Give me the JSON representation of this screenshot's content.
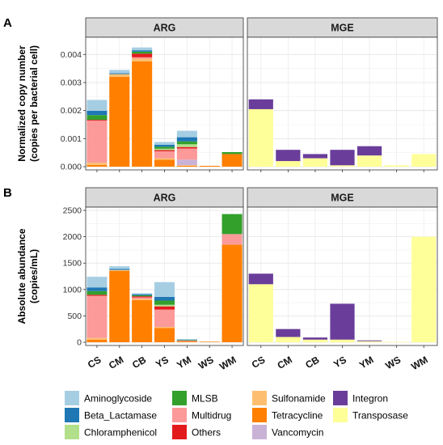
{
  "panels": {
    "A": {
      "letter": "A",
      "ylabel_line1": "Normalized copy number",
      "ylabel_line2": "(copies per bacterial cell)"
    },
    "B": {
      "letter": "B",
      "ylabel_line1": "Absolute abundance",
      "ylabel_line2": "(copies/mL)"
    }
  },
  "colors": {
    "Aminoglycoside": "#a6cee3",
    "Beta_Lactamase": "#1f78b4",
    "Chloramphenicol": "#b2df8a",
    "MLSB": "#33a02c",
    "Multidrug": "#fb9a99",
    "Others": "#e31a1c",
    "Sulfonamide": "#fdbf6f",
    "Tetracycline": "#ff7f00",
    "Vancomycin": "#cab2d6",
    "Integron": "#6a3d9a",
    "Transposase": "#ffff99"
  },
  "legend": [
    [
      "Aminoglycoside",
      "MLSB",
      "Sulfonamide",
      "Integron"
    ],
    [
      "Beta_Lactamase",
      "Multidrug",
      "Tetracycline",
      "Transposase"
    ],
    [
      "Chloramphenicol",
      "Others",
      "Vancomycin"
    ]
  ],
  "chart_data": [
    {
      "panel": "A",
      "facet": "ARG",
      "type": "bar",
      "stacked": true,
      "categories": [
        "CS",
        "CM",
        "CB",
        "YS",
        "YM",
        "WS",
        "WM"
      ],
      "ylim": [
        0,
        0.0045
      ],
      "yticks": [
        "0.000",
        "0.001",
        "0.002",
        "0.003",
        "0.004"
      ],
      "ytick_values": [
        0,
        0.001,
        0.002,
        0.003,
        0.004
      ],
      "series": [
        {
          "name": "Tetracycline",
          "values": [
            6e-05,
            0.0032,
            0.00375,
            0.00025,
            3e-05,
            3e-05,
            0.00045
          ]
        },
        {
          "name": "Sulfonamide",
          "values": [
            8e-05,
            0.0001,
            0.0001,
            5e-05,
            2e-05,
            0.0,
            0.0
          ]
        },
        {
          "name": "Vancomycin",
          "values": [
            0.0,
            0.0,
            0.0,
            0.0,
            0.0002,
            0.0,
            0.0
          ]
        },
        {
          "name": "Multidrug",
          "values": [
            0.0015,
            0.0,
            5e-05,
            0.00025,
            0.0004,
            0.0,
            0.0
          ]
        },
        {
          "name": "Others",
          "values": [
            3e-05,
            0.0,
            0.00013,
            4e-05,
            5e-05,
            0.0,
            0.0
          ]
        },
        {
          "name": "Chloramphenicol",
          "values": [
            0.0,
            0.0,
            0.0,
            5e-05,
            0.0001,
            0.0,
            0.0
          ]
        },
        {
          "name": "MLSB",
          "values": [
            0.00017,
            0.0,
            7e-05,
            7e-05,
            0.0001,
            0.0,
            7e-05
          ]
        },
        {
          "name": "Beta_Lactamase",
          "values": [
            0.00015,
            3e-05,
            5e-05,
            7e-05,
            0.00015,
            0.0,
            0.0
          ]
        },
        {
          "name": "Aminoglycoside",
          "values": [
            0.00039,
            0.00012,
            0.0001,
            0.0001,
            0.00023,
            0.0,
            0.0
          ]
        }
      ]
    },
    {
      "panel": "A",
      "facet": "MGE",
      "type": "bar",
      "stacked": true,
      "categories": [
        "CS",
        "CM",
        "CB",
        "YS",
        "YM",
        "WS",
        "WM"
      ],
      "ylim": [
        0,
        0.0045
      ],
      "series": [
        {
          "name": "Transposase",
          "values": [
            0.00205,
            0.0002,
            0.0003,
            5e-05,
            0.0004,
            5e-05,
            0.00045
          ]
        },
        {
          "name": "Integron",
          "values": [
            0.00035,
            0.0004,
            0.00015,
            0.00055,
            0.00033,
            0.0,
            0.0
          ]
        }
      ]
    },
    {
      "panel": "B",
      "facet": "ARG",
      "type": "bar",
      "stacked": true,
      "categories": [
        "CS",
        "CM",
        "CB",
        "YS",
        "YM",
        "WS",
        "WM"
      ],
      "ylim": [
        0,
        2500
      ],
      "yticks": [
        "0",
        "500",
        "1000",
        "1500",
        "2000",
        "2500"
      ],
      "ytick_values": [
        0,
        500,
        1000,
        1500,
        2000,
        2500
      ],
      "series": [
        {
          "name": "Tetracycline",
          "values": [
            50,
            1350,
            800,
            270,
            15,
            10,
            1850
          ]
        },
        {
          "name": "Sulfonamide",
          "values": [
            30,
            20,
            20,
            20,
            5,
            0,
            0
          ]
        },
        {
          "name": "Multidrug",
          "values": [
            800,
            0,
            30,
            330,
            10,
            0,
            200
          ]
        },
        {
          "name": "Others",
          "values": [
            20,
            0,
            20,
            60,
            5,
            0,
            0
          ]
        },
        {
          "name": "Chloramphenicol",
          "values": [
            0,
            0,
            0,
            30,
            5,
            0,
            0
          ]
        },
        {
          "name": "MLSB",
          "values": [
            70,
            0,
            20,
            80,
            5,
            0,
            380
          ]
        },
        {
          "name": "Beta_Lactamase",
          "values": [
            70,
            20,
            20,
            70,
            5,
            0,
            0
          ]
        },
        {
          "name": "Aminoglycoside",
          "values": [
            200,
            50,
            20,
            280,
            10,
            0,
            0
          ]
        }
      ]
    },
    {
      "panel": "B",
      "facet": "MGE",
      "type": "bar",
      "stacked": true,
      "categories": [
        "CS",
        "CM",
        "CB",
        "YS",
        "YM",
        "WS",
        "WM"
      ],
      "ylim": [
        0,
        2500
      ],
      "series": [
        {
          "name": "Transposase",
          "values": [
            1100,
            100,
            50,
            50,
            20,
            5,
            2000
          ]
        },
        {
          "name": "Integron",
          "values": [
            200,
            150,
            40,
            680,
            15,
            0,
            0
          ]
        }
      ]
    }
  ]
}
